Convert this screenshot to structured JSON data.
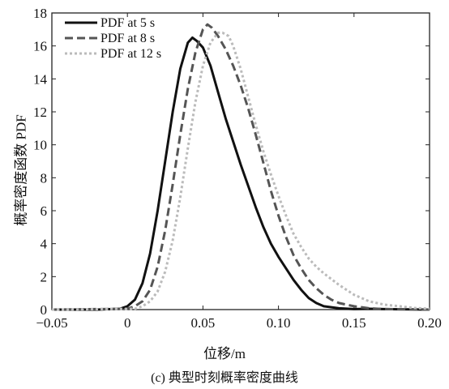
{
  "chart_data": {
    "type": "line",
    "title": "",
    "xlabel": "位移/m",
    "ylabel": "概率密度函数 PDF",
    "caption": "(c) 典型时刻概率密度曲线",
    "xlim": [
      -0.05,
      0.2
    ],
    "ylim": [
      0,
      18
    ],
    "xticks": [
      -0.05,
      0,
      0.05,
      0.1,
      0.15,
      0.2
    ],
    "xtick_labels": [
      "−0.05",
      "0",
      "0.05",
      "0.10",
      "0.15",
      "0.20"
    ],
    "yticks": [
      0,
      2,
      4,
      6,
      8,
      10,
      12,
      14,
      16,
      18
    ],
    "ytick_labels": [
      "0",
      "2",
      "4",
      "6",
      "8",
      "10",
      "12",
      "14",
      "16",
      "18"
    ],
    "grid": false,
    "legend_position": "top-left",
    "series": [
      {
        "name": "PDF at 5 s",
        "color": "#111111",
        "style": "solid",
        "x": [
          -0.05,
          -0.02,
          -0.005,
          0,
          0.005,
          0.01,
          0.015,
          0.02,
          0.025,
          0.03,
          0.035,
          0.04,
          0.043,
          0.046,
          0.05,
          0.055,
          0.06,
          0.065,
          0.07,
          0.075,
          0.08,
          0.085,
          0.09,
          0.095,
          0.1,
          0.105,
          0.11,
          0.115,
          0.12,
          0.125,
          0.13,
          0.14,
          0.15,
          0.16,
          0.17,
          0.18,
          0.2
        ],
        "y": [
          0,
          0,
          0.05,
          0.2,
          0.6,
          1.6,
          3.4,
          6.0,
          9.0,
          12.0,
          14.6,
          16.2,
          16.5,
          16.3,
          15.9,
          14.8,
          13.2,
          11.6,
          10.2,
          8.8,
          7.5,
          6.2,
          5.0,
          4.0,
          3.2,
          2.5,
          1.8,
          1.2,
          0.7,
          0.4,
          0.2,
          0.08,
          0.03,
          0.05,
          0.03,
          0.02,
          0.0
        ]
      },
      {
        "name": "PDF at 8 s",
        "color": "#555555",
        "style": "dashed",
        "x": [
          -0.05,
          0,
          0.005,
          0.01,
          0.015,
          0.02,
          0.025,
          0.03,
          0.035,
          0.04,
          0.045,
          0.05,
          0.053,
          0.056,
          0.06,
          0.065,
          0.07,
          0.075,
          0.08,
          0.085,
          0.09,
          0.095,
          0.1,
          0.105,
          0.11,
          0.115,
          0.12,
          0.125,
          0.13,
          0.135,
          0.14,
          0.15,
          0.16,
          0.17,
          0.2
        ],
        "y": [
          0,
          0.05,
          0.2,
          0.5,
          1.2,
          2.6,
          4.8,
          7.6,
          10.6,
          13.4,
          15.6,
          17.0,
          17.3,
          17.1,
          16.6,
          15.8,
          14.8,
          13.6,
          12.2,
          10.6,
          8.9,
          7.2,
          5.7,
          4.4,
          3.3,
          2.5,
          1.8,
          1.3,
          0.9,
          0.6,
          0.4,
          0.2,
          0.08,
          0.03,
          0.0
        ]
      },
      {
        "name": "PDF at 12 s",
        "color": "#bbbbbb",
        "style": "dotted",
        "x": [
          -0.05,
          0.005,
          0.01,
          0.015,
          0.02,
          0.025,
          0.03,
          0.035,
          0.04,
          0.045,
          0.05,
          0.055,
          0.06,
          0.063,
          0.067,
          0.07,
          0.075,
          0.08,
          0.085,
          0.09,
          0.095,
          0.1,
          0.105,
          0.11,
          0.115,
          0.12,
          0.125,
          0.13,
          0.14,
          0.15,
          0.16,
          0.17,
          0.18,
          0.19,
          0.2
        ],
        "y": [
          0,
          0.05,
          0.2,
          0.5,
          1.1,
          2.3,
          4.2,
          6.8,
          9.8,
          12.6,
          14.8,
          16.2,
          16.8,
          16.8,
          16.6,
          16.0,
          14.6,
          12.9,
          11.2,
          9.6,
          8.2,
          6.9,
          5.7,
          4.6,
          3.8,
          3.1,
          2.6,
          2.2,
          1.5,
          0.9,
          0.5,
          0.3,
          0.2,
          0.1,
          0.05
        ]
      }
    ]
  }
}
